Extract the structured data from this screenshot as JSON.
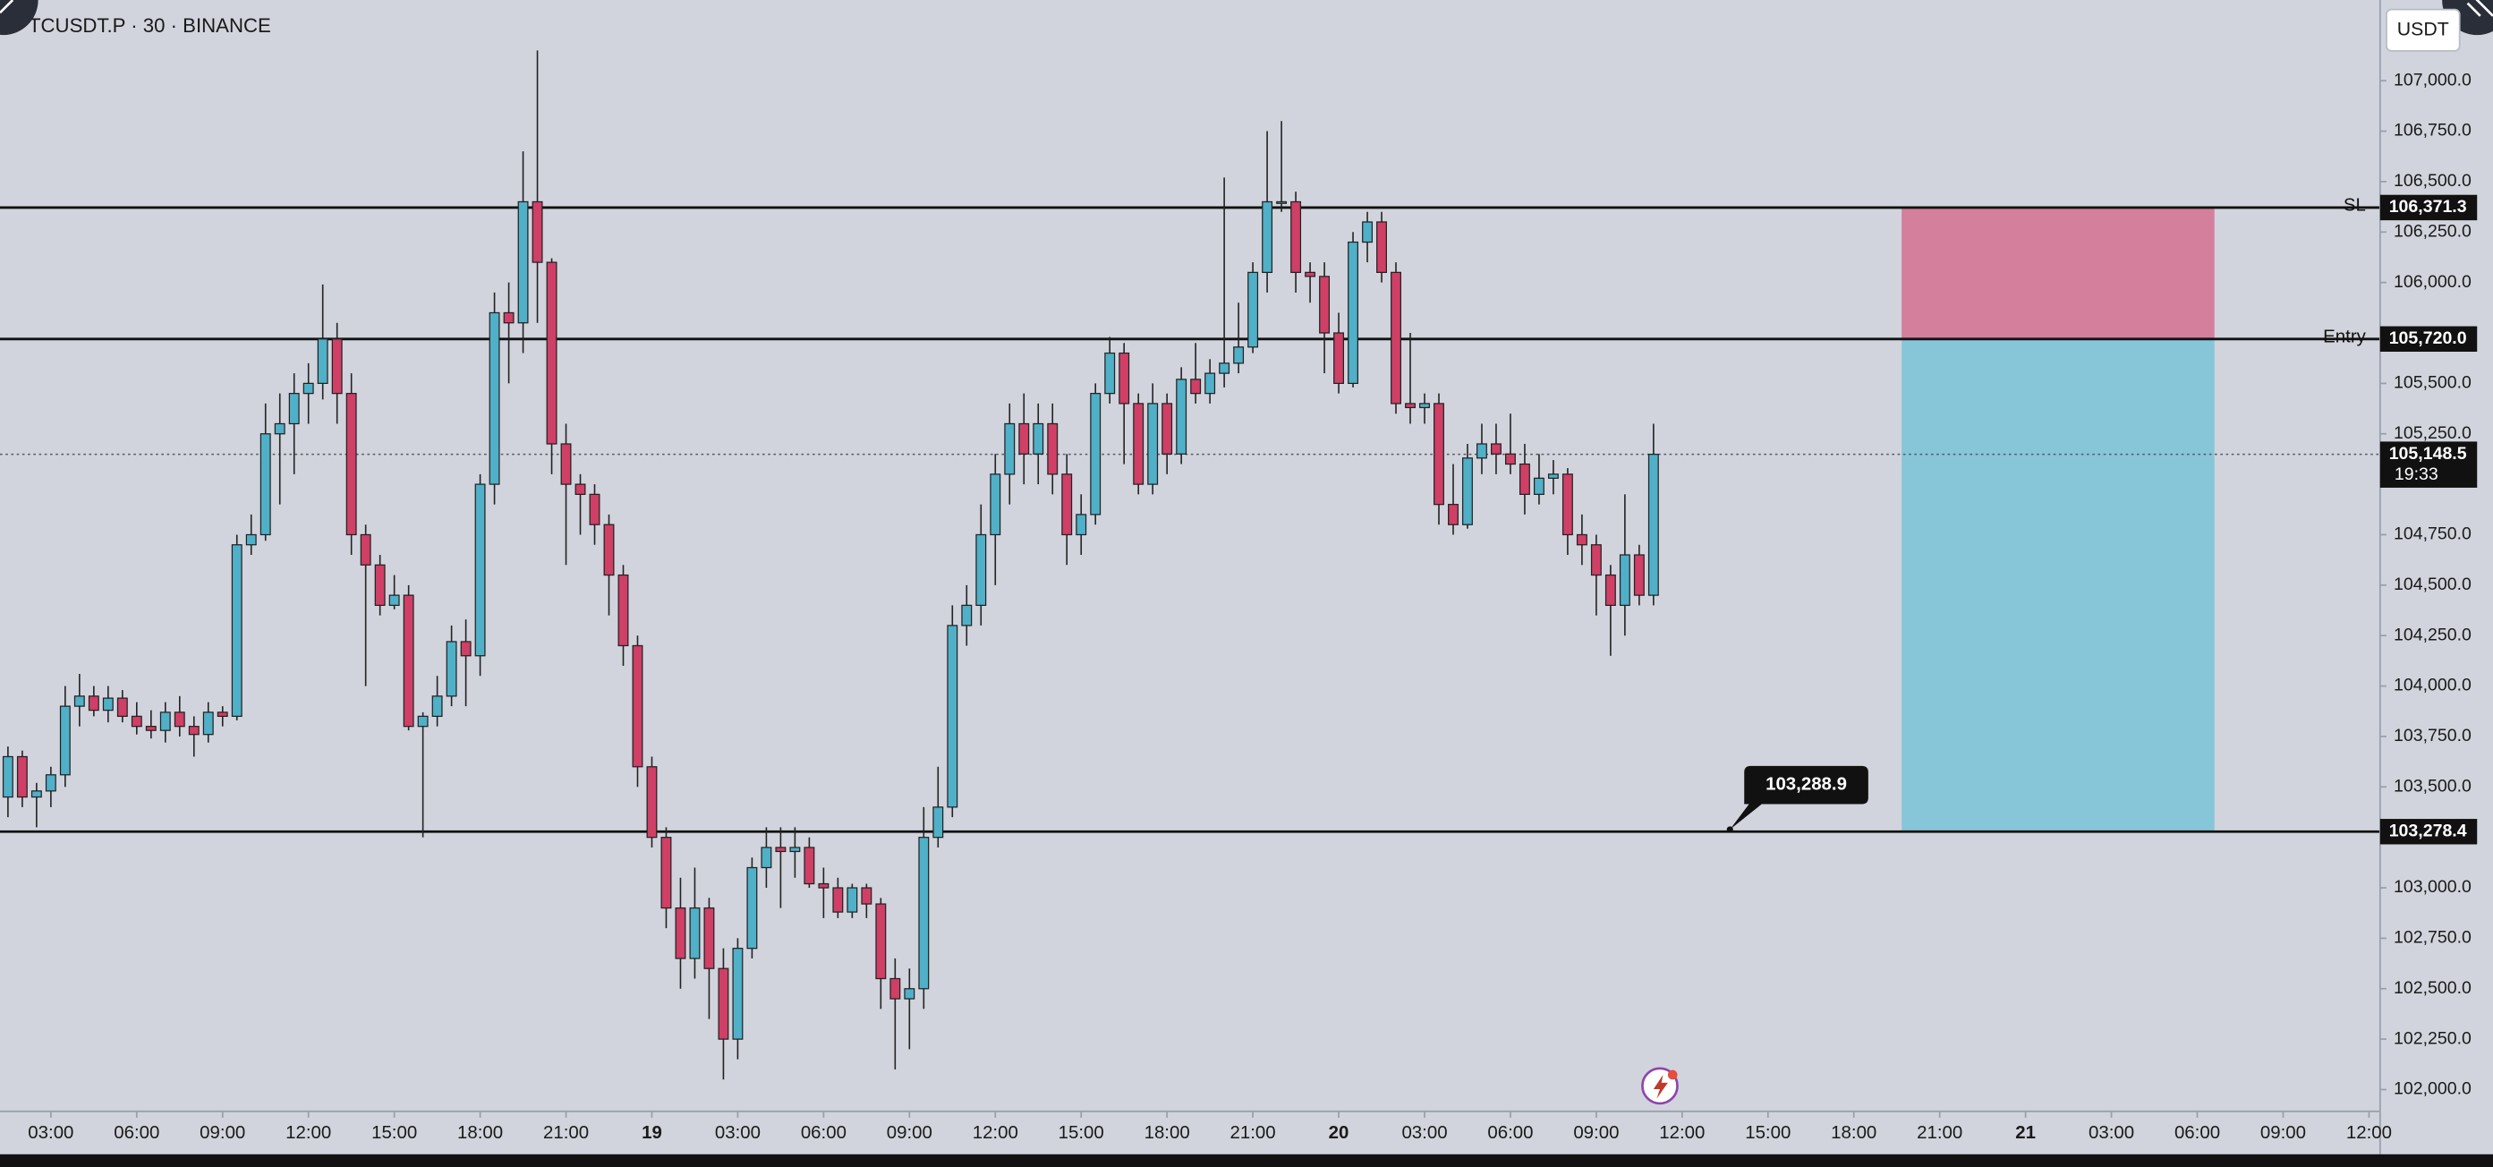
{
  "chart_data": {
    "type": "candlestick",
    "title": "TCUSDT.P · 30 · BINANCE",
    "currency": "USDT",
    "up_color": "#4fb0c8",
    "down_color": "#cf3f66",
    "xlim": [
      1.222,
      84.389
    ],
    "ylim": [
      101900,
      107400
    ],
    "x": [
      1.5,
      2,
      2.5,
      3,
      3.5,
      4,
      4.5,
      5,
      5.5,
      6,
      6.5,
      7,
      7.5,
      8,
      8.5,
      9,
      9.5,
      10,
      10.5,
      11,
      11.5,
      12,
      12.5,
      13,
      13.5,
      14,
      14.5,
      15,
      15.5,
      16,
      16.5,
      17,
      17.5,
      18,
      18.5,
      19,
      19.5,
      20,
      20.5,
      21,
      21.5,
      22,
      22.5,
      23,
      23.5,
      24,
      24.5,
      25,
      25.5,
      26,
      26.5,
      27,
      27.5,
      28,
      28.5,
      29,
      29.5,
      30,
      30.5,
      31,
      31.5,
      32,
      32.5,
      33,
      33.5,
      34,
      34.5,
      35,
      35.5,
      36,
      36.5,
      37,
      37.5,
      38,
      38.5,
      39,
      39.5,
      40,
      40.5,
      41,
      41.5,
      42,
      42.5,
      43,
      43.5,
      44,
      44.5,
      45,
      45.5,
      46,
      46.5,
      47,
      47.5,
      48,
      48.5,
      49,
      49.5,
      50,
      50.5,
      51,
      51.5,
      52,
      52.5,
      53,
      53.5,
      54,
      54.5,
      55,
      55.5,
      56,
      56.5,
      57,
      57.5,
      58,
      58.5,
      59
    ],
    "open": [
      103450,
      103650,
      103450,
      103480,
      103560,
      103900,
      103950,
      103880,
      103940,
      103850,
      103800,
      103780,
      103870,
      103800,
      103760,
      103870,
      103850,
      104700,
      104750,
      105250,
      105300,
      105450,
      105500,
      105720,
      105450,
      104750,
      104600,
      104400,
      104450,
      103800,
      103850,
      103950,
      104220,
      104150,
      105000,
      105850,
      105800,
      106400,
      106100,
      105200,
      105000,
      104950,
      104800,
      104550,
      104200,
      103600,
      103250,
      102900,
      102650,
      102900,
      102600,
      102250,
      102700,
      103100,
      103200,
      103180,
      103200,
      103020,
      103000,
      102880,
      103000,
      102920,
      102550,
      102450,
      102500,
      103250,
      103400,
      104300,
      104400,
      104750,
      105050,
      105300,
      105150,
      105300,
      105050,
      104750,
      104850,
      105450,
      105650,
      105400,
      105000,
      105400,
      105150,
      105520,
      105450,
      105550,
      105600,
      105680,
      106050,
      106400,
      106400,
      106050,
      106030,
      105750,
      105500,
      106200,
      106300,
      106050,
      105400,
      105380,
      105400,
      104900,
      104800,
      105130,
      105200,
      105150,
      105100,
      104950,
      105030,
      105050,
      104750,
      104700,
      104550,
      104400,
      104650,
      104450
    ],
    "high": [
      103700,
      103680,
      103520,
      103600,
      104000,
      104060,
      104000,
      104000,
      103980,
      103920,
      103880,
      103920,
      103950,
      103850,
      103920,
      103900,
      104750,
      104850,
      105400,
      105450,
      105550,
      105600,
      105990,
      105800,
      105550,
      104800,
      104650,
      104550,
      104500,
      103870,
      104050,
      104300,
      104330,
      105050,
      105950,
      106000,
      106650,
      107150,
      106120,
      105300,
      105050,
      105000,
      104850,
      104600,
      104250,
      103650,
      103300,
      103050,
      103100,
      102950,
      102700,
      102750,
      103150,
      103300,
      103300,
      103300,
      103250,
      103100,
      103050,
      103020,
      103020,
      102950,
      102650,
      102600,
      103400,
      103600,
      104400,
      104500,
      104900,
      105150,
      105400,
      105450,
      105400,
      105400,
      105150,
      104950,
      105500,
      105730,
      105700,
      105450,
      105500,
      105450,
      105580,
      105700,
      105620,
      106520,
      105900,
      106100,
      106750,
      106800,
      106450,
      106100,
      106100,
      105850,
      106250,
      106350,
      106350,
      106100,
      105750,
      105450,
      105450,
      105100,
      105200,
      105300,
      105300,
      105350,
      105200,
      105150,
      105120,
      105080,
      104850,
      104750,
      104600,
      104950,
      104700,
      105300
    ],
    "low": [
      103350,
      103400,
      103300,
      103400,
      103500,
      103800,
      103850,
      103820,
      103820,
      103760,
      103740,
      103720,
      103750,
      103650,
      103720,
      103800,
      103830,
      104650,
      104720,
      104900,
      105050,
      105300,
      105420,
      105300,
      104650,
      104000,
      104350,
      104380,
      103780,
      103250,
      103800,
      103900,
      103900,
      104050,
      104900,
      105500,
      105650,
      105800,
      105050,
      104600,
      104750,
      104700,
      104350,
      104100,
      103500,
      103200,
      102800,
      102500,
      102550,
      102350,
      102050,
      102150,
      102650,
      103000,
      102900,
      103050,
      103000,
      102850,
      102850,
      102850,
      102850,
      102400,
      102100,
      102200,
      102400,
      103200,
      103350,
      104200,
      104300,
      104500,
      104900,
      105000,
      105000,
      104950,
      104600,
      104650,
      104800,
      105400,
      105100,
      104950,
      104950,
      105050,
      105100,
      105400,
      105400,
      105480,
      105550,
      105650,
      105950,
      106350,
      105950,
      105900,
      105550,
      105450,
      105480,
      106100,
      106000,
      105350,
      105300,
      105300,
      104800,
      104750,
      104780,
      105050,
      105050,
      105050,
      104850,
      104900,
      104950,
      104650,
      104600,
      104350,
      104150,
      104250,
      104400,
      104400
    ],
    "close": [
      103650,
      103450,
      103480,
      103560,
      103900,
      103950,
      103880,
      103940,
      103850,
      103800,
      103780,
      103870,
      103800,
      103760,
      103870,
      103850,
      104700,
      104750,
      105250,
      105300,
      105450,
      105500,
      105720,
      105450,
      104750,
      104600,
      104400,
      104450,
      103800,
      103850,
      103950,
      104220,
      104150,
      105000,
      105850,
      105800,
      106400,
      106100,
      105200,
      105000,
      104950,
      104800,
      104550,
      104200,
      103600,
      103250,
      102900,
      102650,
      102900,
      102600,
      102250,
      102700,
      103100,
      103200,
      103180,
      103200,
      103020,
      103000,
      102880,
      103000,
      102920,
      102550,
      102450,
      102500,
      103250,
      103400,
      104300,
      104400,
      104750,
      105050,
      105300,
      105150,
      105300,
      105050,
      104750,
      104850,
      105450,
      105650,
      105400,
      105000,
      105400,
      105150,
      105520,
      105450,
      105550,
      105600,
      105680,
      106050,
      106400,
      106400,
      106050,
      106030,
      105750,
      105500,
      106200,
      106300,
      106050,
      105400,
      105380,
      105400,
      104900,
      104800,
      105130,
      105200,
      105150,
      105100,
      104950,
      105030,
      105050,
      104750,
      104700,
      104550,
      104400,
      104650,
      104450,
      105148.5
    ],
    "yticks": [
      {
        "value": 107000,
        "label": "107,000.0"
      },
      {
        "value": 106750,
        "label": "106,750.0"
      },
      {
        "value": 106500,
        "label": "106,500.0"
      },
      {
        "value": 106250,
        "label": "106,250.0"
      },
      {
        "value": 106000,
        "label": "106,000.0"
      },
      {
        "value": 105500,
        "label": "105,500.0"
      },
      {
        "value": 105250,
        "label": "105,250.0"
      },
      {
        "value": 104750,
        "label": "104,750.0"
      },
      {
        "value": 104500,
        "label": "104,500.0"
      },
      {
        "value": 104250,
        "label": "104,250.0"
      },
      {
        "value": 104000,
        "label": "104,000.0"
      },
      {
        "value": 103750,
        "label": "103,750.0"
      },
      {
        "value": 103500,
        "label": "103,500.0"
      },
      {
        "value": 103000,
        "label": "103,000.0"
      },
      {
        "value": 102750,
        "label": "102,750.0"
      },
      {
        "value": 102500,
        "label": "102,500.0"
      },
      {
        "value": 102250,
        "label": "102,250.0"
      },
      {
        "value": 102000,
        "label": "102,000.0"
      }
    ],
    "xticks": [
      {
        "value": 3,
        "label": "03:00"
      },
      {
        "value": 6,
        "label": "06:00"
      },
      {
        "value": 9,
        "label": "09:00"
      },
      {
        "value": 12,
        "label": "12:00"
      },
      {
        "value": 15,
        "label": "15:00"
      },
      {
        "value": 18,
        "label": "18:00"
      },
      {
        "value": 21,
        "label": "21:00"
      },
      {
        "value": 24,
        "label": "19"
      },
      {
        "value": 27,
        "label": "03:00"
      },
      {
        "value": 30,
        "label": "06:00"
      },
      {
        "value": 33,
        "label": "09:00"
      },
      {
        "value": 36,
        "label": "12:00"
      },
      {
        "value": 39,
        "label": "15:00"
      },
      {
        "value": 42,
        "label": "18:00"
      },
      {
        "value": 45,
        "label": "21:00"
      },
      {
        "value": 48,
        "label": "20"
      },
      {
        "value": 51,
        "label": "03:00"
      },
      {
        "value": 54,
        "label": "06:00"
      },
      {
        "value": 57,
        "label": "09:00"
      },
      {
        "value": 60,
        "label": "12:00"
      },
      {
        "value": 63,
        "label": "15:00"
      },
      {
        "value": 66,
        "label": "18:00"
      },
      {
        "value": 69,
        "label": "21:00"
      },
      {
        "value": 72,
        "label": "21"
      },
      {
        "value": 75,
        "label": "03:00"
      },
      {
        "value": 78,
        "label": "06:00"
      },
      {
        "value": 81,
        "label": "09:00"
      },
      {
        "value": 84,
        "label": "12:00"
      }
    ],
    "levels": [
      {
        "name": "SL",
        "value": 106371.3,
        "value_label": "106,371.3"
      },
      {
        "name": "Entry",
        "value": 105720,
        "value_label": "105,720.0"
      },
      {
        "value": 103278.4,
        "value_label": "103,278.4"
      }
    ],
    "current_price": {
      "value": 105148.5,
      "value_label": "105,148.5",
      "countdown": "19:33"
    },
    "annotation": {
      "x": 61.67,
      "value": 103288.9,
      "value_label": "103,288.9"
    },
    "position": {
      "xlim": [
        67.67,
        78.6
      ],
      "stop_color": "#d47f9c",
      "target_color": "#86c6d8"
    }
  }
}
